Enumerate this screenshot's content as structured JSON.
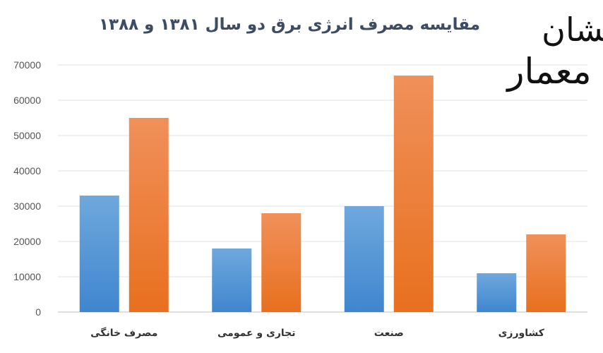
{
  "chart_data": {
    "type": "bar",
    "title": "مقایسه مصرف انرژی برق دو سال ۱۳۸۱ و ۱۳۸۸",
    "xlabel": "",
    "ylabel": "",
    "categories": [
      "مصرف خانگی",
      "تجاری و عمومی",
      "صنعت",
      "کشاورزی"
    ],
    "series": [
      {
        "values": [
          33000,
          18000,
          30000,
          11000
        ],
        "color": "#5b9bd5"
      },
      {
        "values": [
          55000,
          28000,
          67000,
          22000
        ],
        "color": "#ed7d31"
      }
    ],
    "ylim": [
      0,
      70000
    ],
    "yticks": [
      0,
      10000,
      20000,
      30000,
      40000,
      50000,
      60000,
      70000
    ],
    "grid": true,
    "legend": "none"
  },
  "logo": {
    "top": "نشان",
    "bottom": "معمار"
  }
}
